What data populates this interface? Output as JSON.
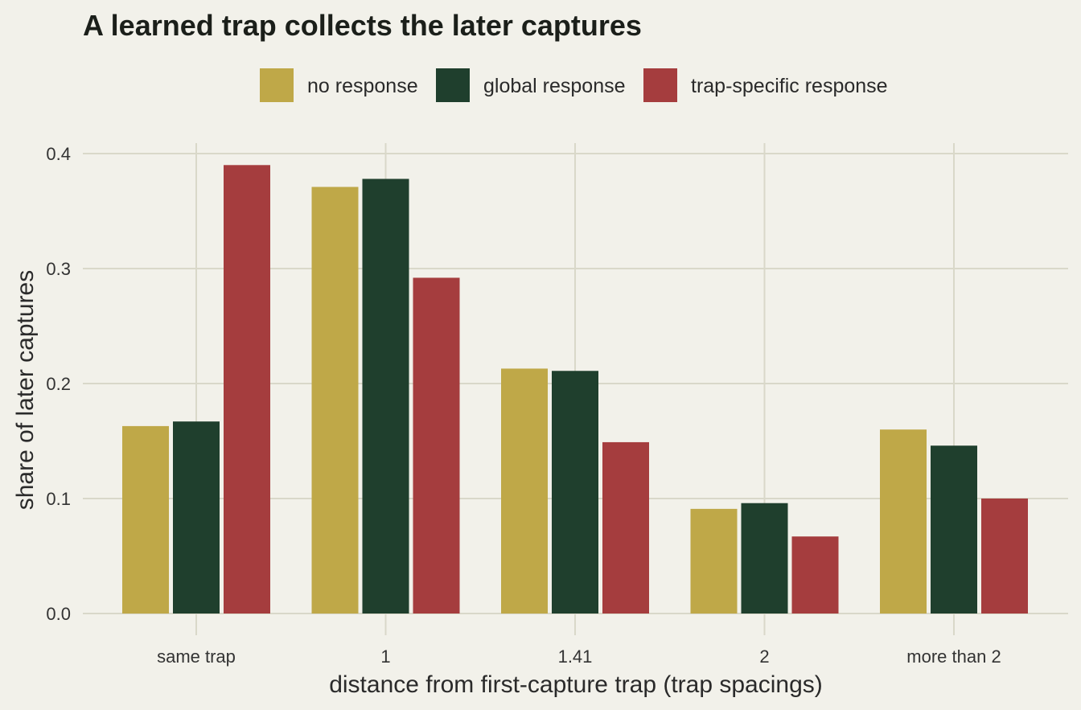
{
  "chart_data": {
    "type": "bar",
    "title": "A learned trap collects the later captures",
    "xlabel": "distance from first-capture trap (trap spacings)",
    "ylabel": "share of later captures",
    "categories": [
      "same trap",
      "1",
      "1.41",
      "2",
      "more than 2"
    ],
    "series": [
      {
        "name": "no response",
        "color": "#bfa848",
        "values": [
          0.163,
          0.371,
          0.213,
          0.091,
          0.16
        ]
      },
      {
        "name": "global response",
        "color": "#1f3f2d",
        "values": [
          0.167,
          0.378,
          0.211,
          0.096,
          0.146
        ]
      },
      {
        "name": "trap-specific response",
        "color": "#a53d3e",
        "values": [
          0.39,
          0.292,
          0.149,
          0.067,
          0.1
        ]
      }
    ],
    "ylim": [
      0,
      0.42
    ],
    "yticks": [
      0.0,
      0.1,
      0.2,
      0.3,
      0.4
    ],
    "ytick_labels": [
      "0.0",
      "0.1",
      "0.2",
      "0.3",
      "0.4"
    ],
    "grid": true,
    "legend_position": "top"
  }
}
